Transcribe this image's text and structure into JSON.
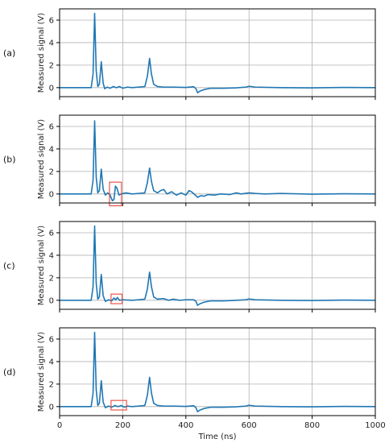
{
  "chart_data": {
    "type": "line",
    "layout": "4 vertically stacked panels sharing the x-axis",
    "xlabel": "Time (ns)",
    "ylabel": "Measured signal (V)",
    "xlim": [
      0,
      1000
    ],
    "ylim": [
      -0.8,
      7.0
    ],
    "xticks": [
      0,
      200,
      400,
      600,
      800,
      1000
    ],
    "xtick_labels": [
      "0",
      "200",
      "400",
      "600",
      "800",
      "1000"
    ],
    "yticks": [
      0,
      2,
      4,
      6
    ],
    "ytick_labels": [
      "0",
      "2",
      "4",
      "6"
    ],
    "grid": true,
    "line_color": "#1f77b4",
    "highlight_color": "#e8463a",
    "panels": [
      {
        "label": "(a)",
        "series": [
          {
            "x": 0,
            "y": 0
          },
          {
            "x": 100,
            "y": 0
          },
          {
            "x": 106,
            "y": 1.2
          },
          {
            "x": 111,
            "y": 6.6
          },
          {
            "x": 116,
            "y": 1.5
          },
          {
            "x": 121,
            "y": 0.1
          },
          {
            "x": 126,
            "y": 0.3
          },
          {
            "x": 132,
            "y": 2.3
          },
          {
            "x": 138,
            "y": 0.4
          },
          {
            "x": 143,
            "y": -0.1
          },
          {
            "x": 150,
            "y": 0.05
          },
          {
            "x": 160,
            "y": -0.05
          },
          {
            "x": 170,
            "y": 0.1
          },
          {
            "x": 180,
            "y": 0
          },
          {
            "x": 190,
            "y": 0.1
          },
          {
            "x": 200,
            "y": -0.05
          },
          {
            "x": 215,
            "y": 0.05
          },
          {
            "x": 230,
            "y": 0
          },
          {
            "x": 250,
            "y": 0.05
          },
          {
            "x": 270,
            "y": 0.1
          },
          {
            "x": 278,
            "y": 1.0
          },
          {
            "x": 285,
            "y": 2.6
          },
          {
            "x": 291,
            "y": 1.2
          },
          {
            "x": 298,
            "y": 0.3
          },
          {
            "x": 310,
            "y": 0.1
          },
          {
            "x": 330,
            "y": 0.05
          },
          {
            "x": 360,
            "y": 0.05
          },
          {
            "x": 400,
            "y": 0.02
          },
          {
            "x": 425,
            "y": 0.08
          },
          {
            "x": 432,
            "y": -0.1
          },
          {
            "x": 437,
            "y": -0.45
          },
          {
            "x": 445,
            "y": -0.3
          },
          {
            "x": 460,
            "y": -0.15
          },
          {
            "x": 480,
            "y": -0.05
          },
          {
            "x": 520,
            "y": -0.05
          },
          {
            "x": 560,
            "y": -0.02
          },
          {
            "x": 590,
            "y": 0.05
          },
          {
            "x": 600,
            "y": 0.12
          },
          {
            "x": 620,
            "y": 0.05
          },
          {
            "x": 700,
            "y": 0
          },
          {
            "x": 800,
            "y": -0.02
          },
          {
            "x": 900,
            "y": 0.02
          },
          {
            "x": 1000,
            "y": 0
          }
        ]
      },
      {
        "label": "(b)",
        "highlight_box": {
          "x": [
            158,
            196
          ],
          "y": [
            -1.05,
            1.05
          ]
        },
        "series": [
          {
            "x": 0,
            "y": 0
          },
          {
            "x": 100,
            "y": 0
          },
          {
            "x": 106,
            "y": 1.2
          },
          {
            "x": 111,
            "y": 6.5
          },
          {
            "x": 116,
            "y": 1.5
          },
          {
            "x": 121,
            "y": 0.1
          },
          {
            "x": 126,
            "y": 0.3
          },
          {
            "x": 132,
            "y": 2.2
          },
          {
            "x": 138,
            "y": 0.4
          },
          {
            "x": 145,
            "y": -0.1
          },
          {
            "x": 152,
            "y": 0.1
          },
          {
            "x": 160,
            "y": -0.1
          },
          {
            "x": 167,
            "y": -0.6
          },
          {
            "x": 172,
            "y": -0.5
          },
          {
            "x": 177,
            "y": 0.7
          },
          {
            "x": 182,
            "y": 0.5
          },
          {
            "x": 188,
            "y": -0.1
          },
          {
            "x": 195,
            "y": 0
          },
          {
            "x": 210,
            "y": 0.1
          },
          {
            "x": 230,
            "y": 0
          },
          {
            "x": 250,
            "y": 0.05
          },
          {
            "x": 270,
            "y": 0.1
          },
          {
            "x": 278,
            "y": 1.0
          },
          {
            "x": 285,
            "y": 2.3
          },
          {
            "x": 291,
            "y": 1.1
          },
          {
            "x": 298,
            "y": 0.3
          },
          {
            "x": 310,
            "y": 0.1
          },
          {
            "x": 320,
            "y": 0.3
          },
          {
            "x": 330,
            "y": 0.4
          },
          {
            "x": 340,
            "y": 0
          },
          {
            "x": 355,
            "y": 0.2
          },
          {
            "x": 370,
            "y": -0.1
          },
          {
            "x": 385,
            "y": 0.1
          },
          {
            "x": 400,
            "y": -0.1
          },
          {
            "x": 410,
            "y": 0.3
          },
          {
            "x": 420,
            "y": 0.15
          },
          {
            "x": 430,
            "y": -0.1
          },
          {
            "x": 437,
            "y": -0.3
          },
          {
            "x": 447,
            "y": -0.15
          },
          {
            "x": 458,
            "y": -0.2
          },
          {
            "x": 470,
            "y": -0.05
          },
          {
            "x": 490,
            "y": -0.1
          },
          {
            "x": 510,
            "y": 0
          },
          {
            "x": 540,
            "y": -0.05
          },
          {
            "x": 560,
            "y": 0.1
          },
          {
            "x": 575,
            "y": 0
          },
          {
            "x": 600,
            "y": 0.1
          },
          {
            "x": 620,
            "y": 0.05
          },
          {
            "x": 650,
            "y": 0
          },
          {
            "x": 700,
            "y": 0.05
          },
          {
            "x": 800,
            "y": -0.02
          },
          {
            "x": 900,
            "y": 0.02
          },
          {
            "x": 1000,
            "y": 0
          }
        ]
      },
      {
        "label": "(c)",
        "highlight_box": {
          "x": [
            163,
            198
          ],
          "y": [
            -0.3,
            0.55
          ]
        },
        "series": [
          {
            "x": 0,
            "y": 0
          },
          {
            "x": 100,
            "y": 0
          },
          {
            "x": 106,
            "y": 1.2
          },
          {
            "x": 111,
            "y": 6.6
          },
          {
            "x": 116,
            "y": 1.5
          },
          {
            "x": 121,
            "y": 0.1
          },
          {
            "x": 126,
            "y": 0.3
          },
          {
            "x": 132,
            "y": 2.3
          },
          {
            "x": 138,
            "y": 0.4
          },
          {
            "x": 145,
            "y": -0.1
          },
          {
            "x": 155,
            "y": 0.05
          },
          {
            "x": 165,
            "y": -0.05
          },
          {
            "x": 172,
            "y": 0.2
          },
          {
            "x": 178,
            "y": 0.05
          },
          {
            "x": 183,
            "y": 0.25
          },
          {
            "x": 190,
            "y": 0
          },
          {
            "x": 200,
            "y": 0.05
          },
          {
            "x": 230,
            "y": 0
          },
          {
            "x": 250,
            "y": 0.05
          },
          {
            "x": 270,
            "y": 0.1
          },
          {
            "x": 278,
            "y": 1.0
          },
          {
            "x": 285,
            "y": 2.5
          },
          {
            "x": 291,
            "y": 1.2
          },
          {
            "x": 298,
            "y": 0.3
          },
          {
            "x": 310,
            "y": 0.1
          },
          {
            "x": 330,
            "y": 0.15
          },
          {
            "x": 345,
            "y": 0
          },
          {
            "x": 360,
            "y": 0.1
          },
          {
            "x": 380,
            "y": 0
          },
          {
            "x": 400,
            "y": 0.05
          },
          {
            "x": 425,
            "y": 0.05
          },
          {
            "x": 432,
            "y": -0.1
          },
          {
            "x": 437,
            "y": -0.45
          },
          {
            "x": 445,
            "y": -0.3
          },
          {
            "x": 460,
            "y": -0.15
          },
          {
            "x": 480,
            "y": -0.05
          },
          {
            "x": 520,
            "y": -0.05
          },
          {
            "x": 560,
            "y": 0
          },
          {
            "x": 590,
            "y": 0.05
          },
          {
            "x": 600,
            "y": 0.12
          },
          {
            "x": 620,
            "y": 0.05
          },
          {
            "x": 700,
            "y": 0
          },
          {
            "x": 800,
            "y": -0.02
          },
          {
            "x": 900,
            "y": 0.02
          },
          {
            "x": 1000,
            "y": 0
          }
        ]
      },
      {
        "label": "(d)",
        "highlight_box": {
          "x": [
            163,
            212
          ],
          "y": [
            -0.3,
            0.55
          ]
        },
        "series": [
          {
            "x": 0,
            "y": 0
          },
          {
            "x": 100,
            "y": 0
          },
          {
            "x": 106,
            "y": 1.2
          },
          {
            "x": 111,
            "y": 6.6
          },
          {
            "x": 116,
            "y": 1.5
          },
          {
            "x": 121,
            "y": 0.1
          },
          {
            "x": 126,
            "y": 0.3
          },
          {
            "x": 132,
            "y": 2.3
          },
          {
            "x": 138,
            "y": 0.4
          },
          {
            "x": 145,
            "y": -0.1
          },
          {
            "x": 155,
            "y": 0.05
          },
          {
            "x": 165,
            "y": -0.05
          },
          {
            "x": 175,
            "y": 0.1
          },
          {
            "x": 185,
            "y": 0
          },
          {
            "x": 195,
            "y": 0.1
          },
          {
            "x": 205,
            "y": -0.05
          },
          {
            "x": 215,
            "y": 0.05
          },
          {
            "x": 230,
            "y": 0
          },
          {
            "x": 250,
            "y": 0.05
          },
          {
            "x": 270,
            "y": 0.1
          },
          {
            "x": 278,
            "y": 1.0
          },
          {
            "x": 285,
            "y": 2.6
          },
          {
            "x": 291,
            "y": 1.2
          },
          {
            "x": 298,
            "y": 0.3
          },
          {
            "x": 310,
            "y": 0.1
          },
          {
            "x": 330,
            "y": 0.05
          },
          {
            "x": 360,
            "y": 0.05
          },
          {
            "x": 400,
            "y": 0.02
          },
          {
            "x": 425,
            "y": 0.08
          },
          {
            "x": 432,
            "y": -0.1
          },
          {
            "x": 437,
            "y": -0.45
          },
          {
            "x": 445,
            "y": -0.3
          },
          {
            "x": 460,
            "y": -0.15
          },
          {
            "x": 480,
            "y": -0.05
          },
          {
            "x": 520,
            "y": -0.05
          },
          {
            "x": 560,
            "y": -0.02
          },
          {
            "x": 590,
            "y": 0.05
          },
          {
            "x": 600,
            "y": 0.12
          },
          {
            "x": 620,
            "y": 0.05
          },
          {
            "x": 700,
            "y": 0
          },
          {
            "x": 800,
            "y": -0.02
          },
          {
            "x": 900,
            "y": 0.02
          },
          {
            "x": 1000,
            "y": 0
          }
        ]
      }
    ]
  }
}
